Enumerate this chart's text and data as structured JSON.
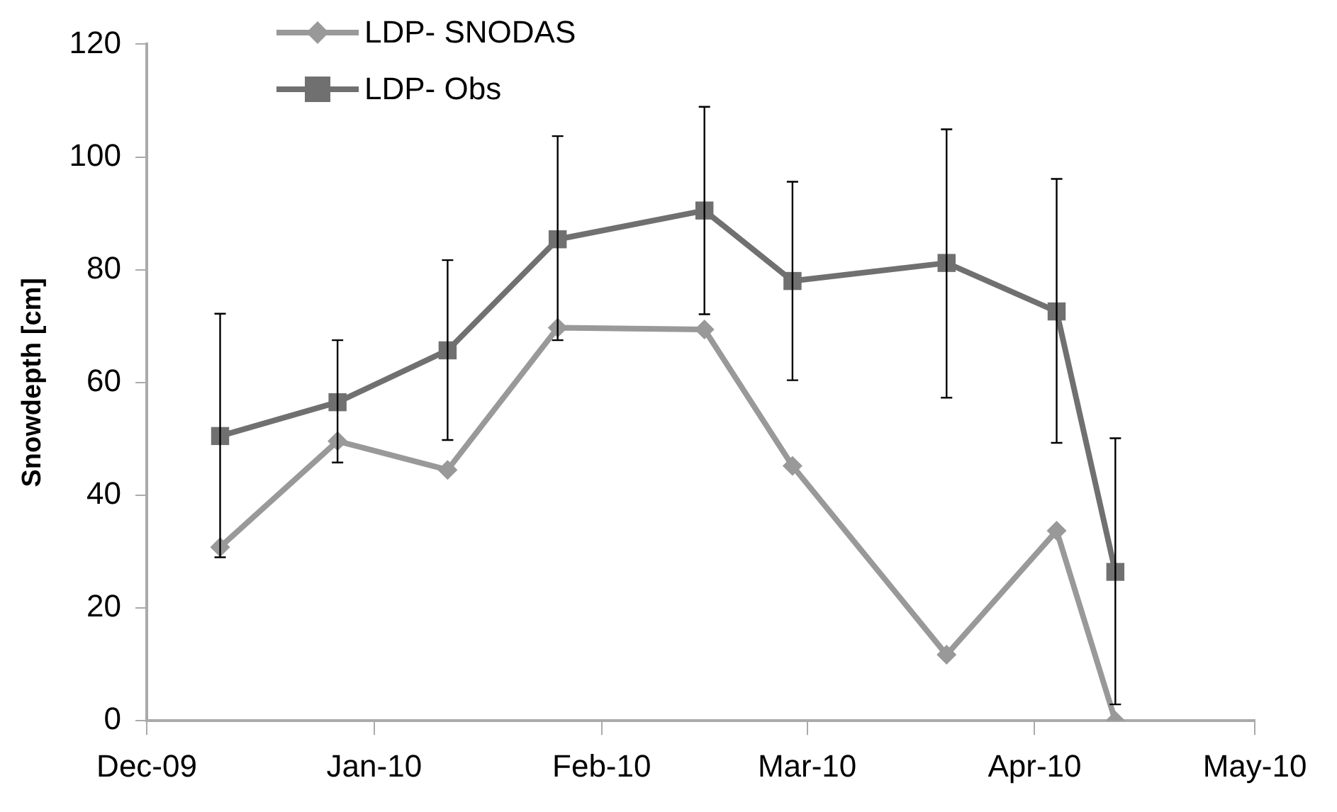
{
  "chart_data": {
    "type": "line",
    "ylabel": "Snowdepth [cm]",
    "x": [
      "2009-12-11",
      "2009-12-27",
      "2010-01-11",
      "2010-01-26",
      "2010-02-15",
      "2010-02-27",
      "2010-03-20",
      "2010-04-04",
      "2010-04-12"
    ],
    "series": [
      {
        "name": "LDP- SNODAS",
        "color": "#999999",
        "marker": "diamond",
        "values": [
          30.8,
          49.6,
          44.5,
          69.7,
          69.4,
          45.2,
          11.7,
          33.7,
          0
        ]
      },
      {
        "name": "LDP- Obs",
        "color": "#707070",
        "marker": "square",
        "values": [
          50.5,
          56.5,
          65.7,
          85.4,
          90.5,
          78.0,
          81.2,
          72.6,
          26.4
        ],
        "errors": [
          [
            29.0,
            72.2
          ],
          [
            45.8,
            67.5
          ],
          [
            49.8,
            81.7
          ],
          [
            67.5,
            103.7
          ],
          [
            72.1,
            108.9
          ],
          [
            60.4,
            95.6
          ],
          [
            57.3,
            104.9
          ],
          [
            49.3,
            96.1
          ],
          [
            2.9,
            50.1
          ]
        ]
      }
    ],
    "xlim": [
      "2009-12-01",
      "2010-05-01"
    ],
    "xticks": [
      {
        "value": "2009-12-01",
        "label": "Dec-09"
      },
      {
        "value": "2010-01-01",
        "label": "Jan-10"
      },
      {
        "value": "2010-02-01",
        "label": "Feb-10"
      },
      {
        "value": "2010-03-01",
        "label": "Mar-10"
      },
      {
        "value": "2010-04-01",
        "label": "Apr-10"
      },
      {
        "value": "2010-05-01",
        "label": "May-10"
      }
    ],
    "ylim": [
      0,
      120
    ],
    "yticks": [
      0,
      20,
      40,
      60,
      80,
      100,
      120
    ],
    "grid": false,
    "legend": "top left"
  }
}
